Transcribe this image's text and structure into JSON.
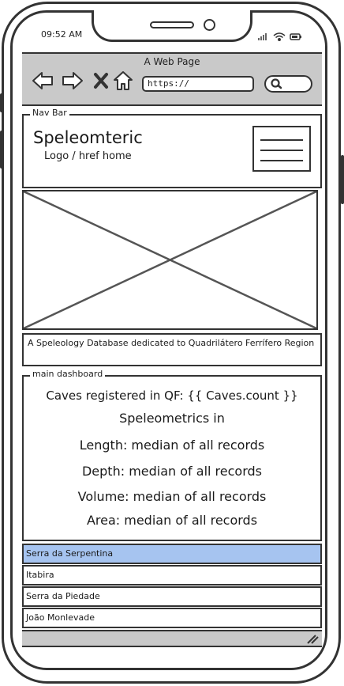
{
  "status_bar": {
    "time": "09:52 AM",
    "icons": [
      "signal-icon",
      "wifi-icon",
      "battery-icon"
    ]
  },
  "browser": {
    "page_title": "A Web Page",
    "url": "https://",
    "controls": [
      "back-arrow-icon",
      "forward-arrow-icon",
      "close-icon",
      "home-icon"
    ],
    "search_icon": "search-icon"
  },
  "navbar": {
    "legend": "Nav Bar",
    "brand": "Speleomteric",
    "brand_sub": "Logo / href home",
    "menu_icon": "hamburger-menu-icon"
  },
  "hero": {
    "image": "image-placeholder"
  },
  "tagline": "A Speleology Database dedicated to Quadrilátero Ferrífero Region",
  "dashboard": {
    "legend": "main dashboard",
    "lines": [
      "Caves registered in QF: {{ Caves.count }}",
      "Speleometrics in",
      "Length: median of all records",
      "Depth: median of all records",
      "Volume: median of all records",
      "Area: median of all records"
    ]
  },
  "regions": {
    "selected_index": 0,
    "items": [
      "Serra da Serpentina",
      "Itabira",
      "Serra da Piedade",
      "João Monlevade"
    ]
  },
  "colors": {
    "chrome_gray": "#c9c9c9",
    "selected_blue": "#a6c4f0",
    "stroke": "#333333"
  }
}
